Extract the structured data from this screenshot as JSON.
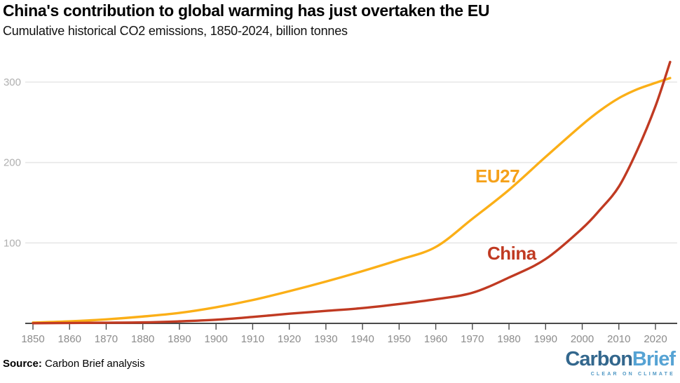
{
  "header": {
    "title": "China's contribution to global warming has just overtaken the EU",
    "subtitle": "Cumulative historical CO2 emissions, 1850-2024, billion tonnes"
  },
  "footer": {
    "source_label": "Source:",
    "source_text": " Carbon Brief analysis",
    "logo_part1": "Carbon",
    "logo_part2": "Brief",
    "logo_tagline": "CLEAR ON CLIMATE"
  },
  "chart_data": {
    "type": "line",
    "title": "China's contribution to global warming has just overtaken the EU",
    "subtitle": "Cumulative historical CO2 emissions, 1850-2024, billion tonnes",
    "x": [
      1850,
      1860,
      1870,
      1880,
      1890,
      1900,
      1910,
      1920,
      1930,
      1940,
      1950,
      1960,
      1970,
      1980,
      1990,
      2000,
      2005,
      2010,
      2015,
      2020,
      2024
    ],
    "series": [
      {
        "name": "EU27",
        "color": "#FBAF17",
        "label_color": "#F5A11A",
        "values": [
          1,
          2.5,
          5,
          8.5,
          13,
          20,
          29,
          40,
          52,
          65,
          79,
          95,
          130,
          166,
          207,
          247,
          265,
          280,
          291,
          299,
          305
        ]
      },
      {
        "name": "China",
        "color": "#C03A22",
        "label_color": "#C03A22",
        "values": [
          0.2,
          0.5,
          0.8,
          1.2,
          2.5,
          4.5,
          8,
          12,
          15.5,
          19,
          24,
          30,
          38,
          57,
          80,
          118,
          142,
          170,
          215,
          270,
          325
        ]
      }
    ],
    "xticks": [
      1850,
      1860,
      1870,
      1880,
      1890,
      1900,
      1910,
      1920,
      1930,
      1940,
      1950,
      1960,
      1970,
      1980,
      1990,
      2000,
      2010,
      2020
    ],
    "yticks": [
      100,
      200,
      300
    ],
    "xlim": [
      1850,
      2024
    ],
    "ylim": [
      0,
      330
    ],
    "grid": "horizontal",
    "legend_position": "inline-labels",
    "colors": {
      "grid": "#e7e7e7",
      "axis": "#4a4a4a",
      "xtick_label": "#8c8c8c",
      "ytick_label": "#b0b0b0"
    }
  }
}
